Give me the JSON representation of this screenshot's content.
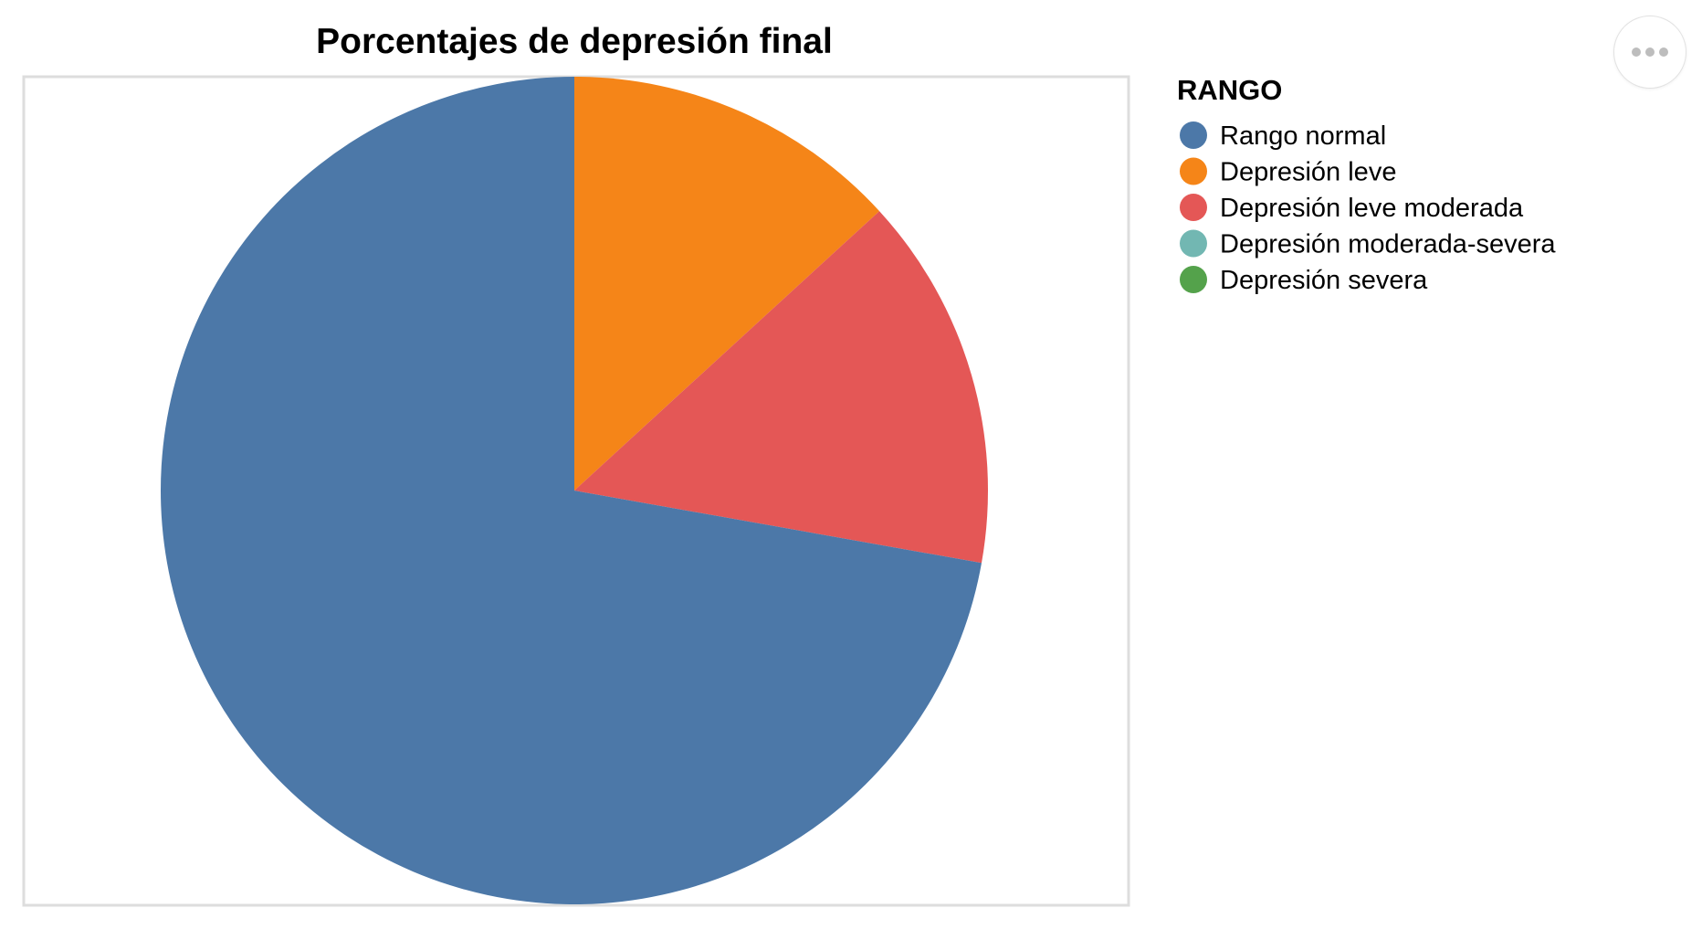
{
  "chart_data": {
    "type": "pie",
    "title": "Porcentajes de depresión final",
    "legend_title": "RANGO",
    "legend_position": "right",
    "categories": [
      "Rango normal",
      "Depresión leve",
      "Depresión leve moderada",
      "Depresión moderada-severa",
      "Depresión severa"
    ],
    "values": [
      72.2,
      13.2,
      14.6,
      0,
      0
    ],
    "colors": [
      "#4c78a8",
      "#f58518",
      "#e45756",
      "#72b7b2",
      "#54a24b"
    ]
  },
  "menu": {
    "icon": "more-horizontal-icon"
  }
}
